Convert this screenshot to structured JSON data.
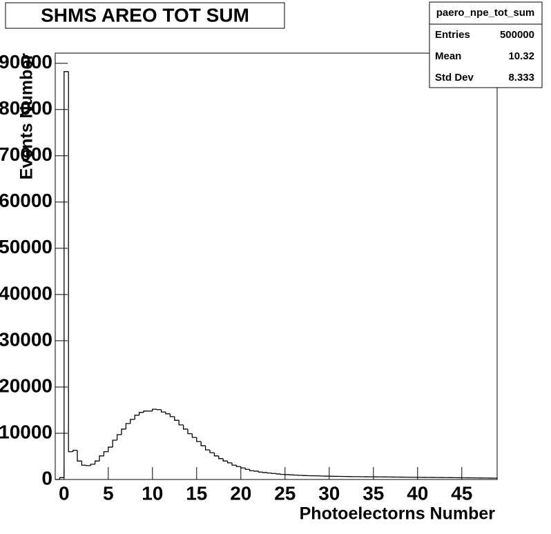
{
  "chart_data": {
    "type": "histogram",
    "title": "SHMS AREO TOT SUM",
    "x_label": "Photoelectorns Number",
    "y_label": "Events Number",
    "stats": {
      "name": "paero_npe_tot_sum",
      "rows": [
        {
          "label": "Entries",
          "value": 500000
        },
        {
          "label": "Mean",
          "value": 10.32
        },
        {
          "label": "Std Dev",
          "value": 8.333
        }
      ]
    },
    "color": "#000000",
    "bins": [
      -1,
      -0.5,
      0,
      0.5,
      1,
      1.5,
      2,
      2.5,
      3,
      3.5,
      4,
      4.5,
      5,
      5.5,
      6,
      6.5,
      7,
      7.5,
      8,
      8.5,
      9,
      9.5,
      10,
      10.5,
      11,
      11.5,
      12,
      12.5,
      13,
      13.5,
      14,
      14.5,
      15,
      15.5,
      16,
      16.5,
      17,
      17.5,
      18,
      18.5,
      19,
      19.5,
      20,
      20.5,
      21,
      21.5,
      22,
      22.5,
      23,
      23.5,
      24,
      24.5,
      25,
      25.5,
      26,
      26.5,
      27,
      27.5,
      28,
      28.5,
      29,
      29.5,
      30,
      30.5,
      31,
      31.5,
      32,
      32.5,
      33,
      33.5,
      34,
      34.5,
      35,
      35.5,
      36,
      36.5,
      37,
      37.5,
      38,
      38.5,
      39,
      39.5,
      40,
      40.5,
      41,
      41.5,
      42,
      42.5,
      43,
      43.5,
      44,
      44.5,
      45,
      45.5,
      46,
      46.5,
      47,
      47.5,
      48,
      48.5,
      49
    ],
    "values": [
      0,
      400,
      88200,
      6000,
      6300,
      4000,
      3100,
      3000,
      3300,
      4000,
      5100,
      6000,
      7000,
      8500,
      9700,
      10900,
      12100,
      13000,
      13900,
      14500,
      14800,
      14800,
      15200,
      15100,
      14600,
      14200,
      13600,
      12800,
      11800,
      10900,
      9900,
      9100,
      8200,
      7300,
      6400,
      5800,
      5100,
      4500,
      4000,
      3600,
      3100,
      2800,
      2500,
      2200,
      1900,
      1800,
      1600,
      1500,
      1400,
      1300,
      1200,
      1100,
      1050,
      1000,
      950,
      900,
      850,
      820,
      800,
      780,
      750,
      720,
      700,
      680,
      670,
      650,
      640,
      620,
      610,
      600,
      590,
      580,
      570,
      560,
      550,
      540,
      530,
      520,
      510,
      500,
      490,
      480,
      470,
      460,
      450,
      440,
      430,
      420,
      410,
      400,
      390,
      380,
      370,
      360,
      350,
      340,
      330,
      320,
      310,
      300
    ],
    "xlim": [
      -1,
      49
    ],
    "ylim": [
      0,
      92200
    ],
    "xticks": [
      0,
      5,
      10,
      15,
      20,
      25,
      30,
      35,
      40,
      45
    ],
    "yticks": [
      0,
      10000,
      20000,
      30000,
      40000,
      50000,
      60000,
      70000,
      80000,
      90000
    ]
  }
}
